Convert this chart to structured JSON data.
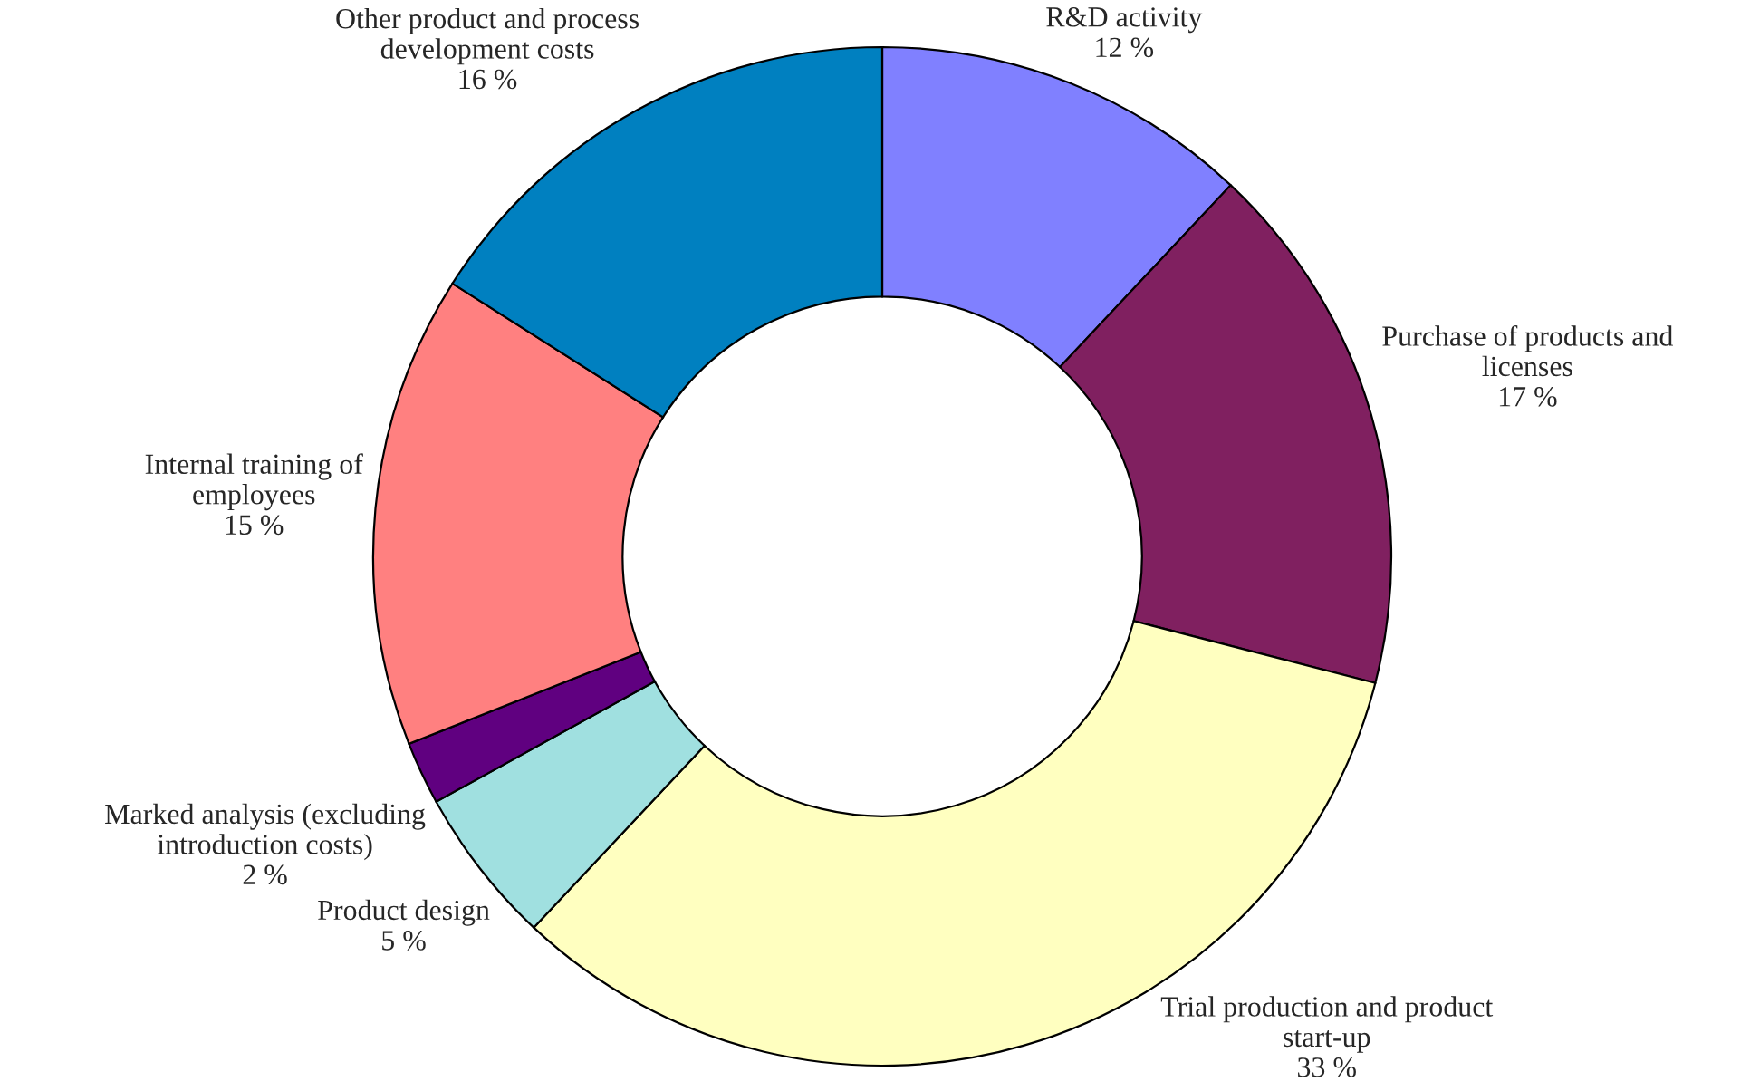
{
  "chart_data": {
    "type": "donut",
    "categories": [
      "R&D activity",
      "Purchase of products and\nlicenses",
      "Trial production and product\nstart-up",
      "Product design",
      "Marked analysis (excluding\nintroduction costs)",
      "Internal training of\nemployees",
      "Other product and process\ndevelopment costs"
    ],
    "values": [
      12,
      17,
      33,
      5,
      2,
      15,
      16
    ],
    "colors": [
      "#8080ff",
      "#802060",
      "#ffffc0",
      "#a0e0e0",
      "#600080",
      "#ff8080",
      "#0080c0"
    ],
    "value_labels": [
      "12 %",
      "17 %",
      "33 %",
      "5 %",
      "2 %",
      "15 %",
      "16 %"
    ],
    "legend": false
  }
}
